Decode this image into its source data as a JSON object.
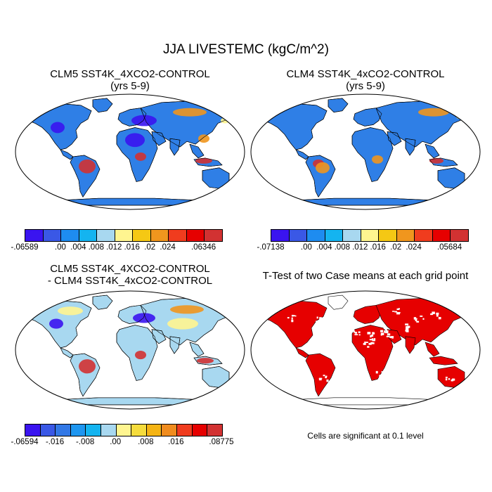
{
  "figure": {
    "title": "JJA LIVESTEMC (kgC/m^2)"
  },
  "panels": [
    {
      "id": "clm5",
      "title_line1": "CLM5 SST4K_4XCO2-CONTROL",
      "title_line2": "(yrs 5-9)",
      "colorbar": {
        "colors": [
          "#3a14f0",
          "#3a58e6",
          "#1e8cf0",
          "#14b4f0",
          "#a8d8f0",
          "#fff590",
          "#f5c814",
          "#f0961e",
          "#f03c1e",
          "#e60000",
          "#d23232"
        ],
        "labels": [
          {
            "text": "-.06589",
            "edge": 0
          },
          {
            "text": ".00",
            "edge": 2
          },
          {
            "text": ".004",
            "edge": 3
          },
          {
            "text": ".008",
            "edge": 4
          },
          {
            "text": ".012",
            "edge": 5
          },
          {
            "text": ".016",
            "edge": 6
          },
          {
            "text": ".02",
            "edge": 7
          },
          {
            "text": ".024",
            "edge": 8
          },
          {
            "text": ".06346",
            "edge": 10
          }
        ]
      }
    },
    {
      "id": "clm4",
      "title_line1": "CLM4 SST4K_4xCO2-CONTROL",
      "title_line2": "(yrs 5-9)",
      "colorbar": {
        "colors": [
          "#3a14f0",
          "#3a58e6",
          "#1e8cf0",
          "#14b4f0",
          "#a8d8f0",
          "#fff590",
          "#f5c814",
          "#f0961e",
          "#f03c1e",
          "#e60000",
          "#d23232"
        ],
        "labels": [
          {
            "text": "-.07138",
            "edge": 0
          },
          {
            "text": ".00",
            "edge": 2
          },
          {
            "text": ".004",
            "edge": 3
          },
          {
            "text": ".008",
            "edge": 4
          },
          {
            "text": ".012",
            "edge": 5
          },
          {
            "text": ".016",
            "edge": 6
          },
          {
            "text": ".02",
            "edge": 7
          },
          {
            "text": ".024",
            "edge": 8
          },
          {
            "text": ".05684",
            "edge": 10
          }
        ]
      }
    },
    {
      "id": "diff",
      "title_line1": "CLM5 SST4K_4XCO2-CONTROL",
      "title_line2": "- CLM4 SST4K_4xCO2-CONTROL",
      "colorbar": {
        "colors": [
          "#3a14f0",
          "#3a58e6",
          "#3278e6",
          "#1e96f0",
          "#14b4f0",
          "#a8d8f0",
          "#fff590",
          "#f5dc3c",
          "#f5b414",
          "#f08c1e",
          "#f03c1e",
          "#e60000",
          "#d23232"
        ],
        "labels": [
          {
            "text": "-.06594",
            "edge": 0
          },
          {
            "text": "-.016",
            "edge": 2
          },
          {
            "text": "-.008",
            "edge": 4
          },
          {
            "text": ".00",
            "edge": 6
          },
          {
            "text": ".008",
            "edge": 8
          },
          {
            "text": ".016",
            "edge": 10
          },
          {
            "text": ".08775",
            "edge": 13
          }
        ]
      }
    },
    {
      "id": "ttest",
      "title_line1": "T-Test of two Case means at each grid point",
      "note": "Cells are significant at 0.1 level"
    }
  ],
  "map_colors": {
    "ocean": "#ffffff",
    "coast": "#000000",
    "clm5_land": "#2f7fe6",
    "clm4_land": "#2f7fe6",
    "diff_land": "#a8d8f0",
    "significant": "#e60000",
    "deep_blue": "#3a14f0",
    "tropical_red": "#d23232",
    "orange": "#f0961e",
    "yellow": "#fff590"
  }
}
